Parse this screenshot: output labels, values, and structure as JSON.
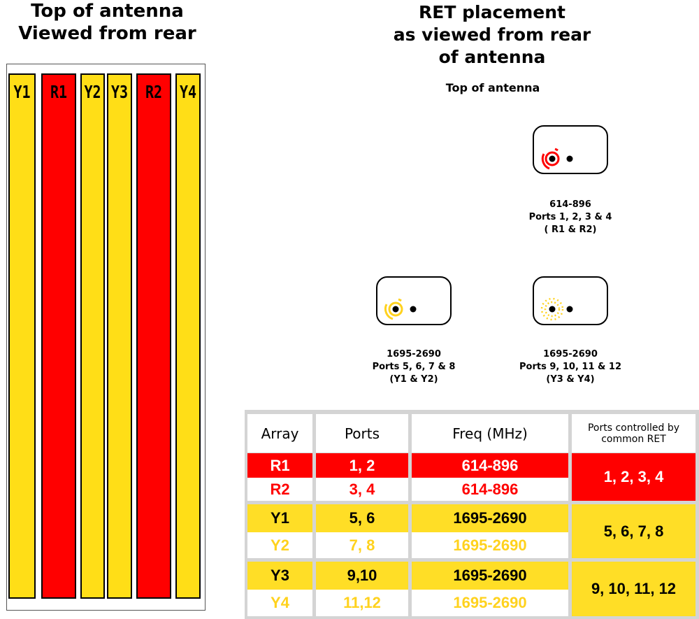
{
  "left": {
    "title_line1": "Top of antenna",
    "title_line2": "Viewed from rear",
    "columns": [
      {
        "label": "Y1",
        "color": "#ffde17"
      },
      {
        "label": "R1",
        "color": "#ff0000"
      },
      {
        "label": "Y2",
        "color": "#ffde17"
      },
      {
        "label": "Y3",
        "color": "#ffde17"
      },
      {
        "label": "R2",
        "color": "#ff0000"
      },
      {
        "label": "Y4",
        "color": "#ffde17"
      }
    ]
  },
  "right": {
    "title_line1": "RET placement",
    "title_line2": "as viewed from rear",
    "title_line3": "of antenna",
    "subtitle": "Top of antenna",
    "rets": [
      {
        "freq": "614-896",
        "ports": "Ports 1, 2, 3 & 4",
        "arrays": "( R1 & R2)",
        "color": "#ff0000"
      },
      {
        "freq": "1695-2690",
        "ports": "Ports 5, 6, 7 & 8",
        "arrays": "(Y1 & Y2)",
        "color": "#ffd21e"
      },
      {
        "freq": "1695-2690",
        "ports": "Ports 9, 10, 11 & 12",
        "arrays": "(Y3 & Y4)",
        "color": "#ffd21e"
      }
    ]
  },
  "table": {
    "headers": [
      "Array",
      "Ports",
      "Freq (MHz)",
      "Ports controlled by common RET"
    ],
    "rows": [
      {
        "array": "R1",
        "ports": "1, 2",
        "freq": "614-896"
      },
      {
        "array": "R2",
        "ports": "3, 4",
        "freq": "614-896"
      },
      {
        "array": "Y1",
        "ports": "5, 6",
        "freq": "1695-2690"
      },
      {
        "array": "Y2",
        "ports": "7, 8",
        "freq": "1695-2690"
      },
      {
        "array": "Y3",
        "ports": "9,10",
        "freq": "1695-2690"
      },
      {
        "array": "Y4",
        "ports": "11,12",
        "freq": "1695-2690"
      }
    ],
    "common": [
      "1, 2, 3, 4",
      "5, 6, 7, 8",
      "9, 10, 11, 12"
    ]
  }
}
